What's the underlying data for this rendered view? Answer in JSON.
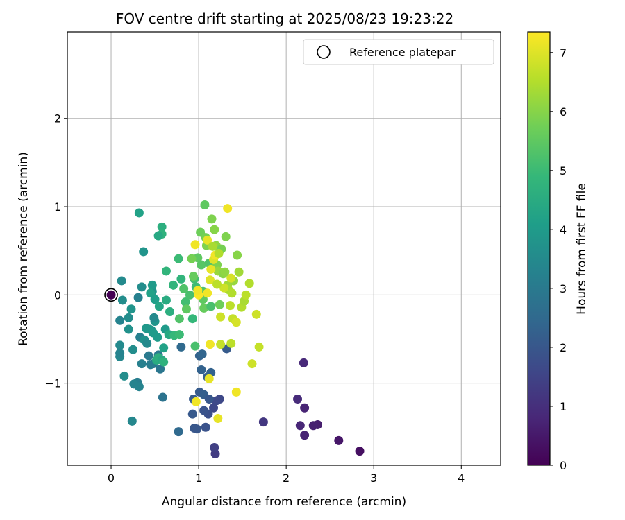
{
  "chart_data": {
    "type": "scatter",
    "title": "FOV centre drift starting at 2025/08/23 19:23:22",
    "xlabel": "Angular distance from reference (arcmin)",
    "ylabel": "Rotation from reference (arcmin)",
    "xlim": [
      -0.5,
      4.45
    ],
    "ylim": [
      -1.93,
      2.98
    ],
    "xticks": [
      0,
      1,
      2,
      3,
      4
    ],
    "yticks": [
      -1,
      0,
      1,
      2
    ],
    "ytick_labels": [
      "−1",
      "0",
      "1",
      "2"
    ],
    "grid": true,
    "legend": {
      "placement": "top-right",
      "entries": [
        "Reference platepar"
      ]
    },
    "reference_point": {
      "x": 0,
      "y": 0,
      "label": "Reference platepar"
    },
    "colorbar": {
      "label": "Hours from first FF file",
      "range": [
        0,
        7.35
      ],
      "ticks": [
        0,
        1,
        2,
        3,
        4,
        5,
        6,
        7
      ],
      "colormap": "viridis",
      "colors": [
        "#440154",
        "#482878",
        "#3e4989",
        "#31688e",
        "#26828e",
        "#1f9e89",
        "#35b779",
        "#6ece58",
        "#b5de2b",
        "#fde725"
      ]
    },
    "points": [
      [
        0.0,
        0.0,
        0.0
      ],
      [
        2.84,
        -1.77,
        0.3
      ],
      [
        2.6,
        -1.65,
        0.45
      ],
      [
        2.36,
        -1.47,
        0.6
      ],
      [
        2.31,
        -1.48,
        0.65
      ],
      [
        2.21,
        -1.59,
        0.7
      ],
      [
        2.16,
        -1.48,
        0.8
      ],
      [
        2.21,
        -1.28,
        0.75
      ],
      [
        2.13,
        -1.18,
        0.9
      ],
      [
        2.2,
        -0.77,
        0.85
      ],
      [
        1.74,
        -1.44,
        1.2
      ],
      [
        1.19,
        -1.8,
        1.3
      ],
      [
        1.18,
        -1.73,
        1.4
      ],
      [
        1.24,
        -1.18,
        1.6
      ],
      [
        1.2,
        -1.2,
        1.65
      ],
      [
        1.17,
        -1.28,
        1.6
      ],
      [
        1.11,
        -1.35,
        1.8
      ],
      [
        1.06,
        -1.31,
        1.9
      ],
      [
        1.08,
        -1.5,
        1.9
      ],
      [
        0.98,
        -1.52,
        2.0
      ],
      [
        0.95,
        -1.51,
        2.0
      ],
      [
        0.93,
        -1.35,
        2.05
      ],
      [
        0.94,
        -1.18,
        2.1
      ],
      [
        1.01,
        -1.1,
        2.1
      ],
      [
        1.06,
        -1.13,
        2.2
      ],
      [
        1.1,
        -0.93,
        2.2
      ],
      [
        1.14,
        -0.88,
        2.3
      ],
      [
        1.12,
        -1.18,
        2.0
      ],
      [
        1.32,
        -0.61,
        2.1
      ],
      [
        1.01,
        -0.69,
        2.3
      ],
      [
        1.04,
        -0.67,
        2.4
      ],
      [
        1.03,
        -0.85,
        2.3
      ],
      [
        0.77,
        -1.55,
        2.5
      ],
      [
        0.8,
        -0.59,
        2.5
      ],
      [
        0.59,
        -1.16,
        2.8
      ],
      [
        0.56,
        -0.84,
        2.9
      ],
      [
        0.48,
        -0.78,
        2.9
      ],
      [
        0.54,
        -0.68,
        3.0
      ],
      [
        0.43,
        -0.69,
        3.0
      ],
      [
        0.45,
        -0.79,
        3.1
      ],
      [
        0.35,
        -0.78,
        3.2
      ],
      [
        0.33,
        -0.48,
        3.2
      ],
      [
        0.3,
        -0.99,
        3.1
      ],
      [
        0.26,
        -1.01,
        3.3
      ],
      [
        0.32,
        -1.04,
        3.3
      ],
      [
        0.24,
        -1.43,
        3.4
      ],
      [
        0.15,
        -0.92,
        3.6
      ],
      [
        0.25,
        -0.62,
        3.6
      ],
      [
        0.1,
        -0.7,
        3.4
      ],
      [
        0.1,
        -0.66,
        3.3
      ],
      [
        0.1,
        -0.57,
        3.5
      ],
      [
        0.1,
        -0.29,
        3.3
      ],
      [
        0.2,
        -0.39,
        3.7
      ],
      [
        0.2,
        -0.26,
        3.6
      ],
      [
        0.12,
        0.16,
        3.5
      ],
      [
        0.13,
        -0.06,
        3.6
      ],
      [
        0.23,
        -0.16,
        3.8
      ],
      [
        0.31,
        -0.03,
        3.2
      ],
      [
        0.35,
        0.09,
        3.6
      ],
      [
        0.37,
        0.49,
        3.8
      ],
      [
        0.32,
        0.93,
        4.2
      ],
      [
        0.38,
        -0.51,
        3.7
      ],
      [
        0.4,
        -0.38,
        3.9
      ],
      [
        0.41,
        -0.55,
        3.5
      ],
      [
        0.46,
        -0.4,
        3.7
      ],
      [
        0.44,
        -0.39,
        3.9
      ],
      [
        0.48,
        -0.43,
        4.0
      ],
      [
        0.5,
        -0.3,
        3.8
      ],
      [
        0.53,
        -0.48,
        4.0
      ],
      [
        0.49,
        -0.26,
        3.5
      ],
      [
        0.47,
        0.04,
        3.8
      ],
      [
        0.47,
        0.11,
        4.0
      ],
      [
        0.45,
        0.02,
        4.2
      ],
      [
        0.5,
        -0.05,
        4.1
      ],
      [
        0.55,
        -0.13,
        4.3
      ],
      [
        0.52,
        -0.74,
        4.5
      ],
      [
        0.54,
        -0.71,
        4.6
      ],
      [
        0.58,
        -0.74,
        4.4
      ],
      [
        0.6,
        -0.76,
        4.7
      ],
      [
        0.6,
        -0.6,
        4.2
      ],
      [
        0.62,
        -0.39,
        4.0
      ],
      [
        0.66,
        -0.45,
        4.4
      ],
      [
        0.67,
        -0.19,
        4.6
      ],
      [
        0.63,
        -0.06,
        4.5
      ],
      [
        0.63,
        0.27,
        4.8
      ],
      [
        0.58,
        0.77,
        4.6
      ],
      [
        0.58,
        0.69,
        4.7
      ],
      [
        0.54,
        0.67,
        4.4
      ],
      [
        0.71,
        0.11,
        4.8
      ],
      [
        0.72,
        -0.46,
        4.9
      ],
      [
        0.78,
        -0.45,
        5.0
      ],
      [
        0.78,
        -0.27,
        5.3
      ],
      [
        0.77,
        0.41,
        5.0
      ],
      [
        0.8,
        0.18,
        4.8
      ],
      [
        0.83,
        0.07,
        5.3
      ],
      [
        0.85,
        -0.08,
        5.1
      ],
      [
        0.86,
        -0.16,
        5.5
      ],
      [
        0.9,
        0.0,
        5.2
      ],
      [
        0.93,
        -0.27,
        4.9
      ],
      [
        0.95,
        0.18,
        5.1
      ],
      [
        0.96,
        -0.58,
        5.2
      ],
      [
        0.97,
        0.09,
        5.0
      ],
      [
        0.99,
        0.42,
        5.5
      ],
      [
        1.03,
        0.34,
        5.4
      ],
      [
        1.05,
        0.04,
        5.3
      ],
      [
        1.05,
        -0.05,
        5.5
      ],
      [
        1.06,
        -0.15,
        5.6
      ],
      [
        1.02,
        0.71,
        5.7
      ],
      [
        1.07,
        1.02,
        5.5
      ],
      [
        1.08,
        0.65,
        5.8
      ],
      [
        1.09,
        0.56,
        5.9
      ],
      [
        1.12,
        0.36,
        5.3
      ],
      [
        1.14,
        -0.13,
        5.2
      ],
      [
        1.15,
        0.86,
        5.9
      ],
      [
        1.18,
        0.74,
        6.0
      ],
      [
        1.2,
        0.56,
        6.1
      ],
      [
        1.21,
        0.34,
        5.9
      ],
      [
        1.22,
        0.27,
        6.2
      ],
      [
        1.24,
        -0.11,
        5.7
      ],
      [
        1.26,
        0.52,
        5.8
      ],
      [
        1.28,
        0.24,
        6.0
      ],
      [
        1.31,
        0.66,
        5.9
      ],
      [
        1.33,
        0.11,
        6.3
      ],
      [
        1.34,
        0.06,
        6.4
      ],
      [
        1.36,
        -0.12,
        6.6
      ],
      [
        1.38,
        0.02,
        6.5
      ],
      [
        1.4,
        0.16,
        6.2
      ],
      [
        1.44,
        0.45,
        6.0
      ],
      [
        1.46,
        0.26,
        6.3
      ],
      [
        1.49,
        -0.14,
        6.5
      ],
      [
        1.52,
        -0.07,
        6.4
      ],
      [
        1.54,
        0.0,
        6.6
      ],
      [
        1.58,
        0.13,
        6.5
      ],
      [
        1.66,
        -0.22,
        6.8
      ],
      [
        1.69,
        -0.59,
        6.7
      ],
      [
        1.61,
        -0.78,
        6.8
      ],
      [
        1.37,
        -0.55,
        6.6
      ],
      [
        1.25,
        -0.56,
        6.7
      ],
      [
        1.25,
        -0.25,
        6.8
      ],
      [
        1.39,
        -0.27,
        6.7
      ],
      [
        1.43,
        -0.31,
        6.9
      ],
      [
        1.43,
        -1.1,
        7.2
      ],
      [
        1.22,
        -1.4,
        7.1
      ],
      [
        1.12,
        -0.95,
        7.1
      ],
      [
        0.97,
        -1.21,
        7.2
      ],
      [
        1.13,
        -0.56,
        7.2
      ],
      [
        0.96,
        0.57,
        7.2
      ],
      [
        1.1,
        0.62,
        7.1
      ],
      [
        1.17,
        0.4,
        7.0
      ],
      [
        1.19,
        0.45,
        7.2
      ],
      [
        1.14,
        0.29,
        7.1
      ],
      [
        1.13,
        0.17,
        7.0
      ],
      [
        1.1,
        0.02,
        7.2
      ],
      [
        1.0,
        0.0,
        7.3
      ],
      [
        0.99,
        0.05,
        7.2
      ],
      [
        1.33,
        0.98,
        7.2
      ],
      [
        1.37,
        0.19,
        6.9
      ],
      [
        1.29,
        0.08,
        6.8
      ],
      [
        1.21,
        0.12,
        6.6
      ],
      [
        0.92,
        0.41,
        5.8
      ],
      [
        0.94,
        0.21,
        5.6
      ],
      [
        1.16,
        0.55,
        6.4
      ],
      [
        1.23,
        0.47,
        6.5
      ],
      [
        1.3,
        0.26,
        6.1
      ]
    ]
  }
}
